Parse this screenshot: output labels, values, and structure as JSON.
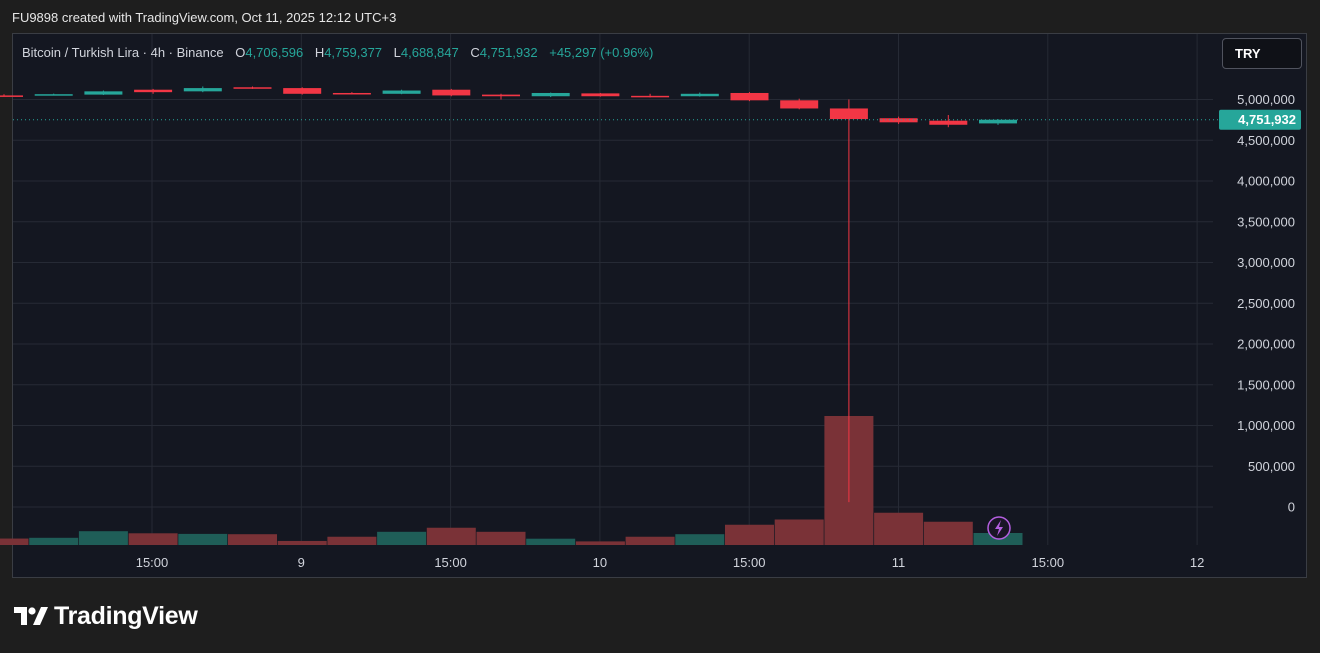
{
  "header": {
    "text": "FU9898 created with TradingView.com, Oct 11, 2025 12:12 UTC+3"
  },
  "legend": {
    "symbol": "Bitcoin / Turkish Lira · 4h · Binance",
    "o_label": "O",
    "o_value": "4,706,596",
    "h_label": "H",
    "h_value": "4,759,377",
    "l_label": "L",
    "l_value": "4,688,847",
    "c_label": "C",
    "c_value": "4,751,932",
    "change": "+45,297 (+0.96%)"
  },
  "currency_button": {
    "label": "TRY"
  },
  "price_label": "4,751,932",
  "logo": {
    "text": "TradingView"
  },
  "colors": {
    "up": "#26a69a",
    "down": "#f23645",
    "vol_up": "#1f5e58",
    "vol_down": "#7a3237",
    "grid": "#262a35",
    "text": "#d1d4dc"
  },
  "chart_data": {
    "type": "candlestick",
    "title": "Bitcoin / Turkish Lira · 4h · Binance",
    "interval": "4h",
    "currency": "TRY",
    "y_ticks": [
      "5,000,000",
      "4,500,000",
      "4,000,000",
      "3,500,000",
      "3,000,000",
      "2,500,000",
      "2,000,000",
      "1,500,000",
      "1,000,000",
      "500,000",
      "0"
    ],
    "y_tick_values": [
      5000000,
      4500000,
      4000000,
      3500000,
      3000000,
      2500000,
      2000000,
      1500000,
      1000000,
      500000,
      0
    ],
    "x_ticks": [
      {
        "label": "15:00",
        "pos": 2.5
      },
      {
        "label": "9",
        "pos": 5.5
      },
      {
        "label": "15:00",
        "pos": 8.5
      },
      {
        "label": "10",
        "pos": 11.5
      },
      {
        "label": "15:00",
        "pos": 14.5
      },
      {
        "label": "11",
        "pos": 17.5
      },
      {
        "label": "15:00",
        "pos": 20.5
      },
      {
        "label": "12",
        "pos": 23.5
      }
    ],
    "last_price": 4751932,
    "candles": [
      {
        "o": 5050000,
        "h": 5065000,
        "l": 5035000,
        "c": 5040000
      },
      {
        "o": 5060000,
        "h": 5072000,
        "l": 5055000,
        "c": 5065000
      },
      {
        "o": 5060000,
        "h": 5110000,
        "l": 5055000,
        "c": 5100000
      },
      {
        "o": 5120000,
        "h": 5130000,
        "l": 5070000,
        "c": 5090000
      },
      {
        "o": 5100000,
        "h": 5160000,
        "l": 5090000,
        "c": 5140000
      },
      {
        "o": 5150000,
        "h": 5160000,
        "l": 5130000,
        "c": 5135000
      },
      {
        "o": 5140000,
        "h": 5150000,
        "l": 5060000,
        "c": 5070000
      },
      {
        "o": 5080000,
        "h": 5090000,
        "l": 5070000,
        "c": 5075000
      },
      {
        "o": 5070000,
        "h": 5120000,
        "l": 5065000,
        "c": 5110000
      },
      {
        "o": 5120000,
        "h": 5130000,
        "l": 5040000,
        "c": 5050000
      },
      {
        "o": 5060000,
        "h": 5070000,
        "l": 5000000,
        "c": 5040000
      },
      {
        "o": 5040000,
        "h": 5085000,
        "l": 5030000,
        "c": 5080000
      },
      {
        "o": 5075000,
        "h": 5080000,
        "l": 5035000,
        "c": 5040000
      },
      {
        "o": 5045000,
        "h": 5070000,
        "l": 5025000,
        "c": 5035000
      },
      {
        "o": 5040000,
        "h": 5085000,
        "l": 5035000,
        "c": 5070000
      },
      {
        "o": 5080000,
        "h": 5090000,
        "l": 4980000,
        "c": 4990000
      },
      {
        "o": 4990000,
        "h": 5010000,
        "l": 4880000,
        "c": 4890000
      },
      {
        "o": 4890000,
        "h": 5000000,
        "l": 60000,
        "c": 4760000
      },
      {
        "o": 4770000,
        "h": 4790000,
        "l": 4700000,
        "c": 4720000
      },
      {
        "o": 4740000,
        "h": 4810000,
        "l": 4660000,
        "c": 4690000
      },
      {
        "o": 4706596,
        "h": 4759377,
        "l": 4688847,
        "c": 4751932
      }
    ],
    "volume": [
      {
        "v": 0.43,
        "dir": "down"
      },
      {
        "v": 0.48,
        "dir": "up"
      },
      {
        "v": 0.92,
        "dir": "up"
      },
      {
        "v": 0.78,
        "dir": "down"
      },
      {
        "v": 0.74,
        "dir": "up"
      },
      {
        "v": 0.72,
        "dir": "down"
      },
      {
        "v": 0.27,
        "dir": "down"
      },
      {
        "v": 0.55,
        "dir": "down"
      },
      {
        "v": 0.88,
        "dir": "up"
      },
      {
        "v": 1.15,
        "dir": "down"
      },
      {
        "v": 0.88,
        "dir": "down"
      },
      {
        "v": 0.42,
        "dir": "up"
      },
      {
        "v": 0.24,
        "dir": "down"
      },
      {
        "v": 0.55,
        "dir": "down"
      },
      {
        "v": 0.72,
        "dir": "up"
      },
      {
        "v": 1.35,
        "dir": "down"
      },
      {
        "v": 1.7,
        "dir": "down"
      },
      {
        "v": 8.6,
        "dir": "down"
      },
      {
        "v": 2.15,
        "dir": "down"
      },
      {
        "v": 1.55,
        "dir": "down"
      },
      {
        "v": 0.8,
        "dir": "up"
      }
    ],
    "grid": true
  }
}
